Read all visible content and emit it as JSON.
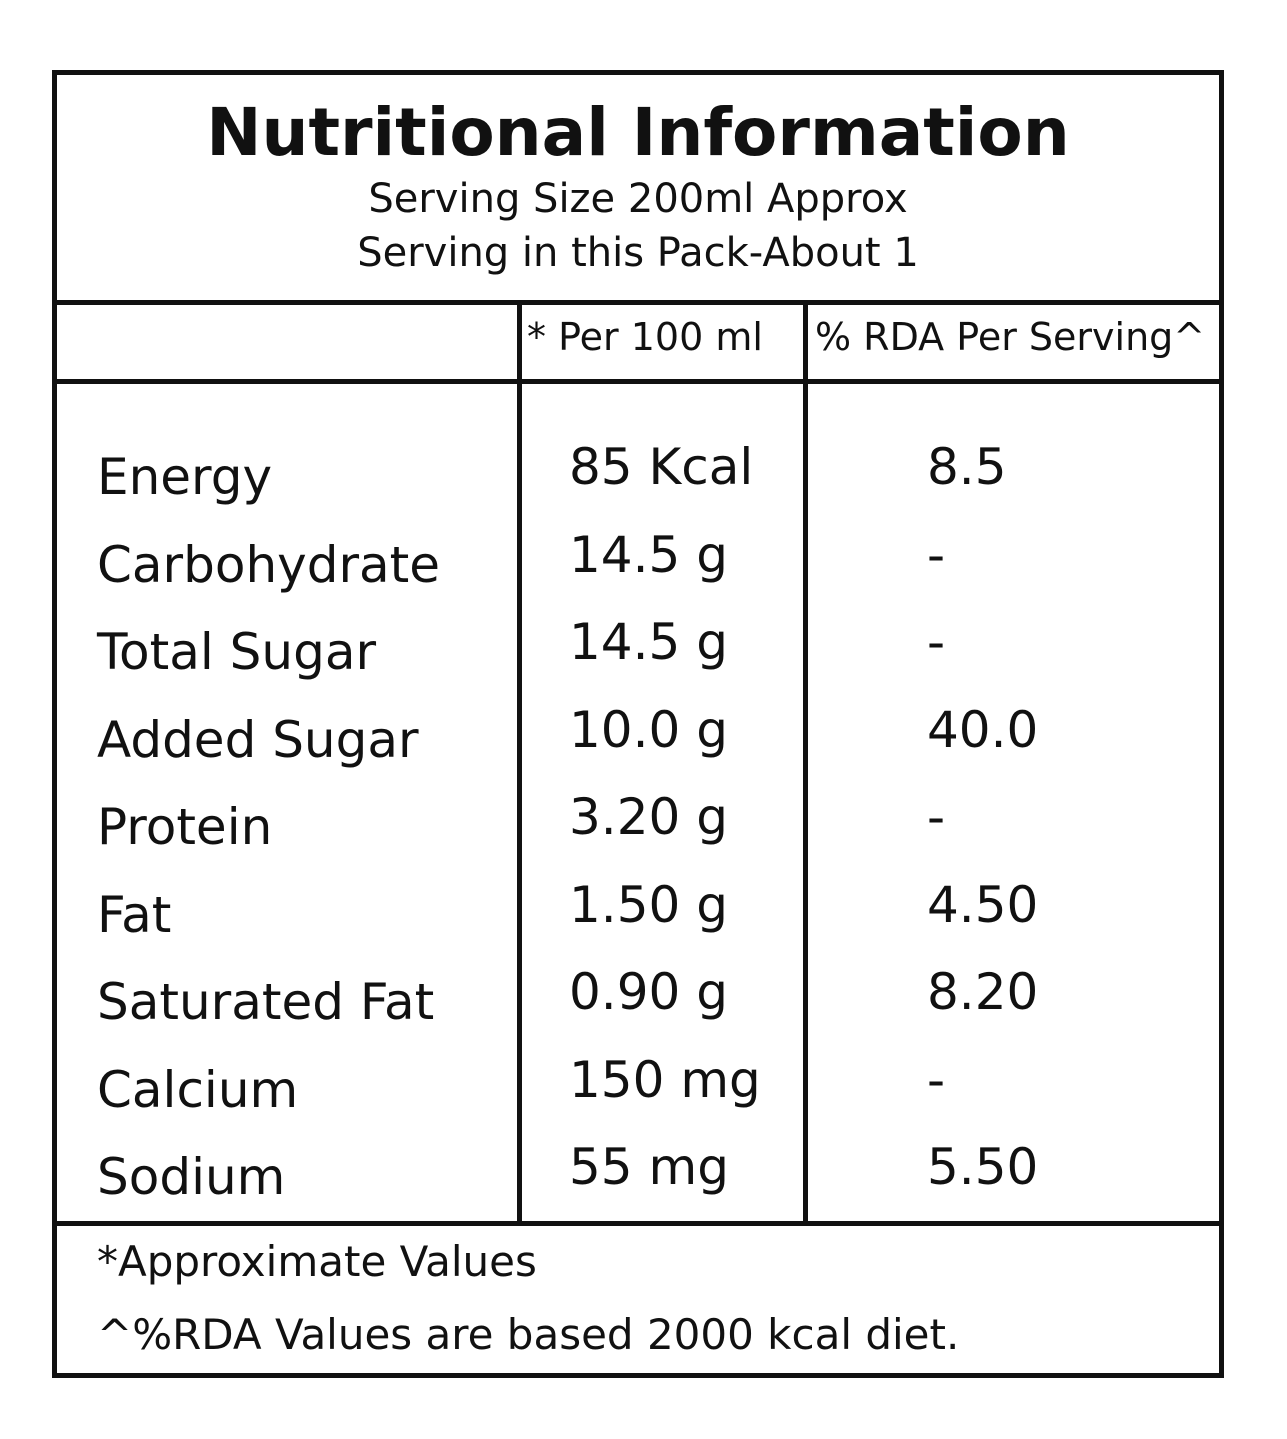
{
  "header": {
    "title": "Nutritional Information",
    "serving_size": "Serving Size 200ml Approx",
    "servings": "Serving in this Pack-About 1"
  },
  "columns": {
    "nutrient": "",
    "per_100ml": "* Per 100 ml",
    "rda": "% RDA Per Serving^"
  },
  "rows": [
    {
      "name": "Energy",
      "value": "85 Kcal",
      "rda": "8.5"
    },
    {
      "name": "Carbohydrate",
      "value": "14.5 g",
      "rda": "-"
    },
    {
      "name": "Total Sugar",
      "value": "14.5 g",
      "rda": "-"
    },
    {
      "name": "Added Sugar",
      "value": "10.0 g",
      "rda": "40.0"
    },
    {
      "name": "Protein",
      "value": "3.20 g",
      "rda": "-"
    },
    {
      "name": "Fat",
      "value": "1.50 g",
      "rda": "4.50"
    },
    {
      "name": "Saturated Fat",
      "value": "0.90 g",
      "rda": "8.20"
    },
    {
      "name": "Calcium",
      "value": "150 mg",
      "rda": "-"
    },
    {
      "name": "Sodium",
      "value": "55 mg",
      "rda": "5.50"
    }
  ],
  "footnotes": {
    "approx": "*Approximate Values",
    "rda_note": "^%RDA Values are based 2000 kcal diet."
  }
}
